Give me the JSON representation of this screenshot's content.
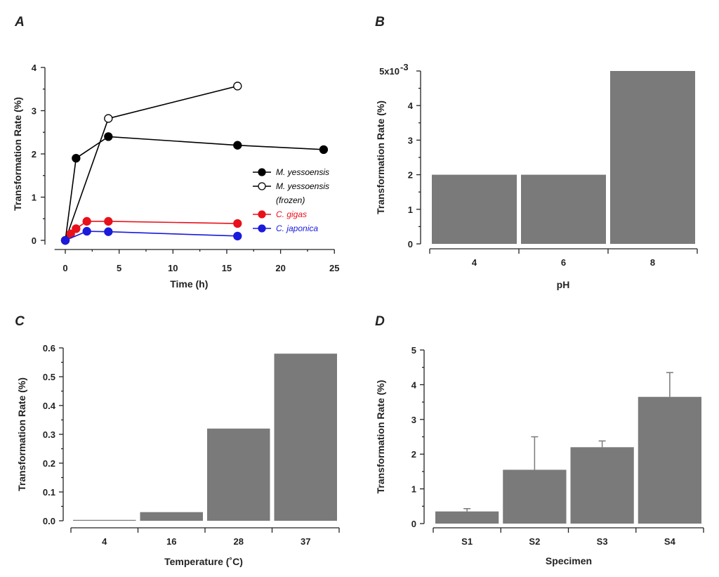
{
  "colors": {
    "bar": "#7a7a7a",
    "ink": "#222222",
    "black_series": "#000000",
    "red_series": "#e8111b",
    "blue_series": "#1a1adc"
  },
  "chart_data": [
    {
      "panel": "A",
      "type": "line",
      "xlabel": "Time (h)",
      "ylabel": "Transformation Rate (%)",
      "xlim": [
        -1,
        25
      ],
      "ylim": [
        -0.1,
        4
      ],
      "xticks": [
        "0",
        "5",
        "10",
        "15",
        "20",
        "25"
      ],
      "yticks": [
        "0",
        "1",
        "2",
        "3",
        "4"
      ],
      "legend_position": "right",
      "series": [
        {
          "name": "M. yessoensis",
          "legend_lines": [
            "M. yessoensis"
          ],
          "color": "#000000",
          "marker": "filled",
          "x": [
            0,
            1,
            4,
            16,
            24
          ],
          "y": [
            0,
            1.9,
            2.4,
            2.2,
            2.1
          ]
        },
        {
          "name": "M. yessoensis (frozen)",
          "legend_lines": [
            "M. yessoensis",
            "(frozen)"
          ],
          "color": "#000000",
          "marker": "open",
          "x": [
            0,
            4,
            16
          ],
          "y": [
            0,
            2.82,
            3.57
          ]
        },
        {
          "name": "C. gigas",
          "legend_lines": [
            "C. gigas"
          ],
          "color": "#e8111b",
          "marker": "filled",
          "x": [
            0,
            0.5,
            1,
            2,
            4,
            16
          ],
          "y": [
            0,
            0.15,
            0.27,
            0.44,
            0.44,
            0.39
          ]
        },
        {
          "name": "C. japonica",
          "legend_lines": [
            "C. japonica"
          ],
          "color": "#1a1adc",
          "marker": "filled",
          "x": [
            0,
            2,
            4,
            16
          ],
          "y": [
            0,
            0.21,
            0.2,
            0.1
          ]
        }
      ]
    },
    {
      "panel": "B",
      "type": "bar",
      "xlabel": "pH",
      "ylabel": "Transformation Rate (%)",
      "categories": [
        "4",
        "6",
        "8"
      ],
      "values": [
        2,
        2,
        5
      ],
      "ylim": [
        0,
        5
      ],
      "yticks": [
        "0",
        "1",
        "2",
        "3",
        "4",
        "5x10"
      ],
      "ytick_superscript": "-3"
    },
    {
      "panel": "C",
      "type": "bar",
      "xlabel": "Temperature (˚C)",
      "ylabel": "Transformation Rate (%)",
      "categories": [
        "4",
        "16",
        "28",
        "37"
      ],
      "values": [
        0.003,
        0.03,
        0.32,
        0.58
      ],
      "ylim": [
        0,
        0.6
      ],
      "yticks": [
        "0.0",
        "0.1",
        "0.2",
        "0.3",
        "0.4",
        "0.5",
        "0.6"
      ]
    },
    {
      "panel": "D",
      "type": "bar",
      "xlabel": "Specimen",
      "ylabel": "Transformation Rate (%)",
      "categories": [
        "S1",
        "S2",
        "S3",
        "S4"
      ],
      "values": [
        0.35,
        1.55,
        2.2,
        3.65
      ],
      "errors": [
        0.08,
        0.95,
        0.18,
        0.7
      ],
      "ylim": [
        0,
        5
      ],
      "yticks": [
        "0",
        "1",
        "2",
        "3",
        "4",
        "5"
      ]
    }
  ]
}
